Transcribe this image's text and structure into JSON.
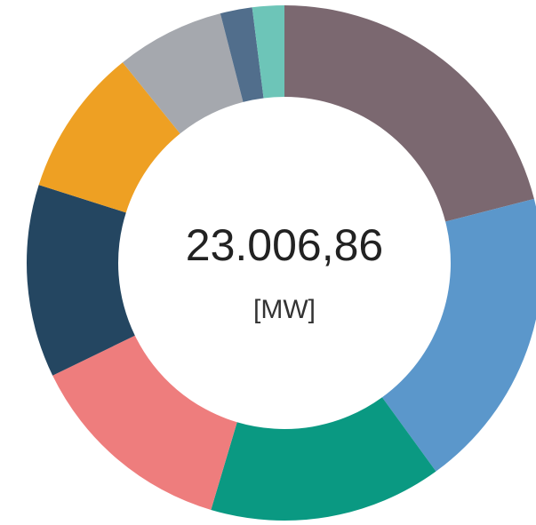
{
  "chart_data": {
    "type": "pie",
    "donut": true,
    "values": [
      21,
      19,
      14.6,
      13.2,
      12.1,
      9.3,
      6.8,
      2,
      2
    ],
    "colors": [
      "#7b6870",
      "#5b97cb",
      "#0a9982",
      "#ee7d7d",
      "#244661",
      "#eea023",
      "#a5a8ae",
      "#516e8c",
      "#6dc5b8"
    ],
    "center_value": "23.006,86",
    "center_unit": "[MW]"
  }
}
